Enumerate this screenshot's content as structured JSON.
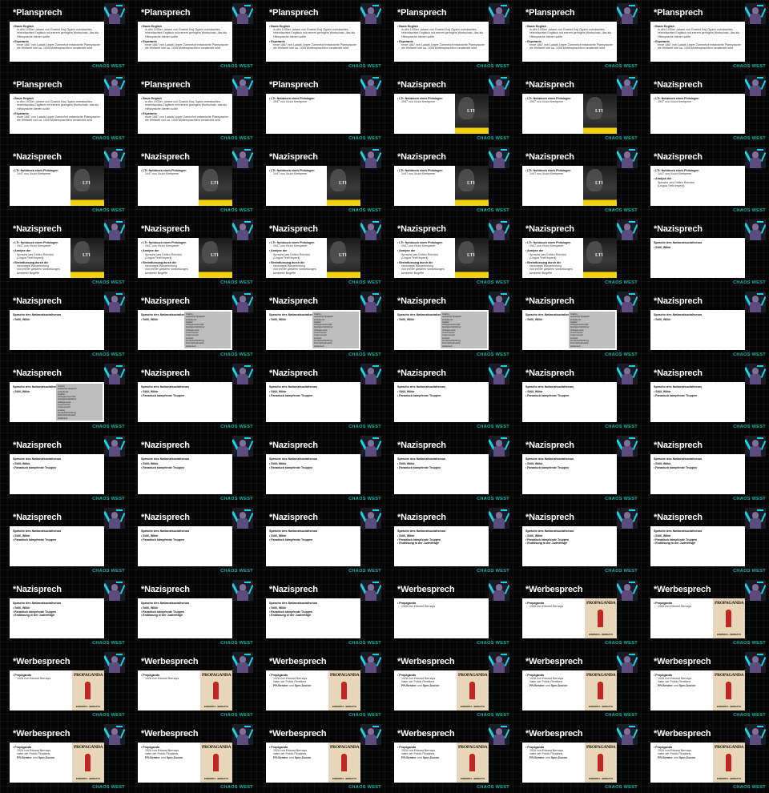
{
  "footer_label": "CHAOS WEST",
  "colors": {
    "accent": "#12b3a8",
    "cyan_deco": "#18d5e6",
    "lti_yellow": "#f1d20f",
    "propaganda_red": "#c0281d"
  },
  "titles": {
    "plansprech": "*Plansprech",
    "nazisprech": "*Nazisprech",
    "werbesprech": "*Werbesprech"
  },
  "plan_bullets": {
    "basic_english": "Basic English",
    "basic_english_desc": "in den 1930er Jahren von Charles Kay Ogden entwickeltes, vereinfachtes Englisch mit extrem geringem Wortschatz, das als Hilfssprache dienen sollte",
    "esperanto": "Esperanto",
    "esperanto_desc": "ende 1887 von Ludwik Lejzer Zamenhof entwickelte Plansprache: die Weltweit von ca. 1000 Muttersprachlern verwendet wird"
  },
  "nazi_bullets": {
    "lti": "LTI: Notizbuch eines Philologen",
    "lti_desc": "1947 von Victor Klemperer",
    "analyse": "Analyse der",
    "sprache_dritten": "Sprache des Dritten Reiches",
    "lingua": "(Lingua Tertii Imperii)",
    "beeinflussung": "Beeinflussung durch die",
    "stereotype": "stereotype Wiederholung",
    "immer_gleicher": "von immer gleichen Vorstellungen",
    "besetzter": "besetzter Begriffe",
    "sprache_ns": "Sprache des Nationalsozialismus",
    "stilll": "Stilll, Wilkir",
    "fanatisch": "Fanatisch kämpfende Truppen",
    "endloesung": "Endlösung in der Judenfrage"
  },
  "word_list": [
    "zutiefst",
    "unbeirrbar fanatisch",
    "aufopfernd",
    "totalitär",
    "Volksgemeinschaft",
    "Gefolgschaftsführer",
    "Volksgenosse",
    "Unmenschen",
    "Untermensch",
    "entartet",
    "Sonderbehandlung",
    "Reichskristallnacht",
    "Heldentod"
  ],
  "book_covers": {
    "lti_text": "LTI",
    "propaganda_title": "PROPAGANDA",
    "propaganda_author": "EDWARD L. BERNAYS"
  },
  "werbe_bullets": {
    "propaganda": "Propaganda",
    "propaganda_desc": "1928 von Edward Bernays",
    "public_relations": "Vater der Public Relations",
    "pr_berater": "PR-Berater",
    "und": "und",
    "spin_doctor": "Spin-Doctor"
  }
}
